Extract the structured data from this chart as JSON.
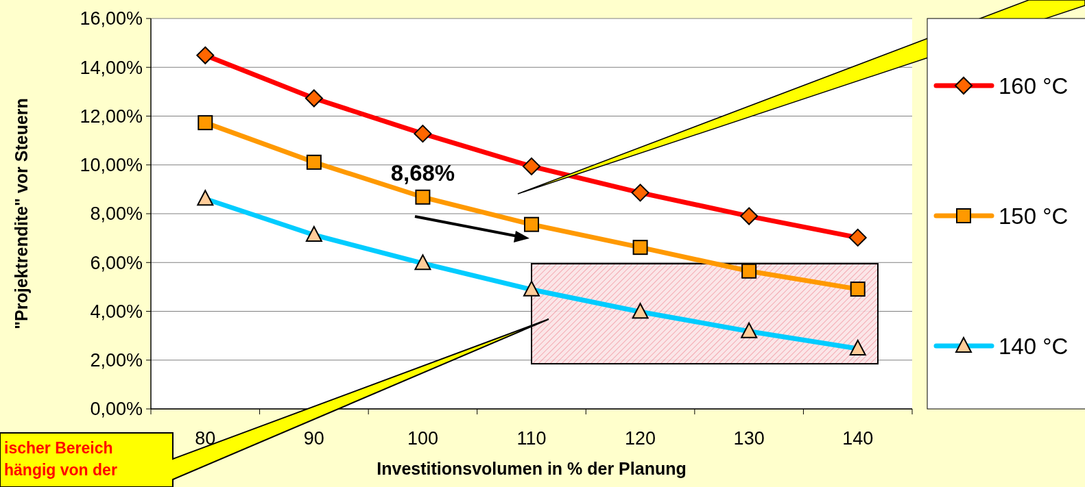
{
  "chart_data": {
    "type": "line",
    "xlabel": "Investitionsvolumen in % der Planung",
    "ylabel": "\"Projektrendite\" vor Steuern",
    "categories": [
      "80",
      "90",
      "100",
      "110",
      "120",
      "130",
      "140"
    ],
    "series": [
      {
        "name": "160 °C",
        "color": "#ff0000",
        "marker": "diamond",
        "colors": [
          "#ff6600",
          "#ff6600",
          "#ff6600",
          "#ff6600",
          "#ff6600",
          "#ff6600",
          "#ff6600"
        ],
        "values": [
          14.49,
          12.73,
          11.28,
          9.94,
          8.86,
          7.9,
          7.02
        ]
      },
      {
        "name": "150 °C",
        "color": "#ff9900",
        "marker": "square",
        "colors": [
          "#ff9900",
          "#ff9900",
          "#ff9900",
          "#ff9900",
          "#ff9900",
          "#ff9900",
          "#ff9900"
        ],
        "values": [
          11.73,
          10.11,
          8.68,
          7.56,
          6.62,
          5.65,
          4.91
        ]
      },
      {
        "name": "140 °C",
        "color": "#00ccff",
        "marker": "triangle",
        "colors": [
          "#ffcc99",
          "#ffcc99",
          "#ffcc99",
          "#ffcc99",
          "#ffcc99",
          "#ffcc99",
          "#ffcc99"
        ],
        "values": [
          8.61,
          7.13,
          5.97,
          4.89,
          3.98,
          3.18,
          2.47
        ]
      }
    ],
    "ylim": [
      0,
      16
    ],
    "yticks": [
      {
        "value": 0,
        "label": "0,00%"
      },
      {
        "value": 2,
        "label": "2,00%"
      },
      {
        "value": 4,
        "label": "4,00%"
      },
      {
        "value": 6,
        "label": "6,00%"
      },
      {
        "value": 8,
        "label": "8,00%"
      },
      {
        "value": 10,
        "label": "10,00%"
      },
      {
        "value": 12,
        "label": "12,00%"
      },
      {
        "value": 14,
        "label": "14,00%"
      },
      {
        "value": 16,
        "label": "16,00%"
      }
    ],
    "grid": "y",
    "legend": "right",
    "line_style": "solid",
    "annotations": [
      {
        "text": "8,68%",
        "x": "100",
        "y": 8.68
      },
      "ischer Bereich",
      "hängig von der"
    ]
  }
}
